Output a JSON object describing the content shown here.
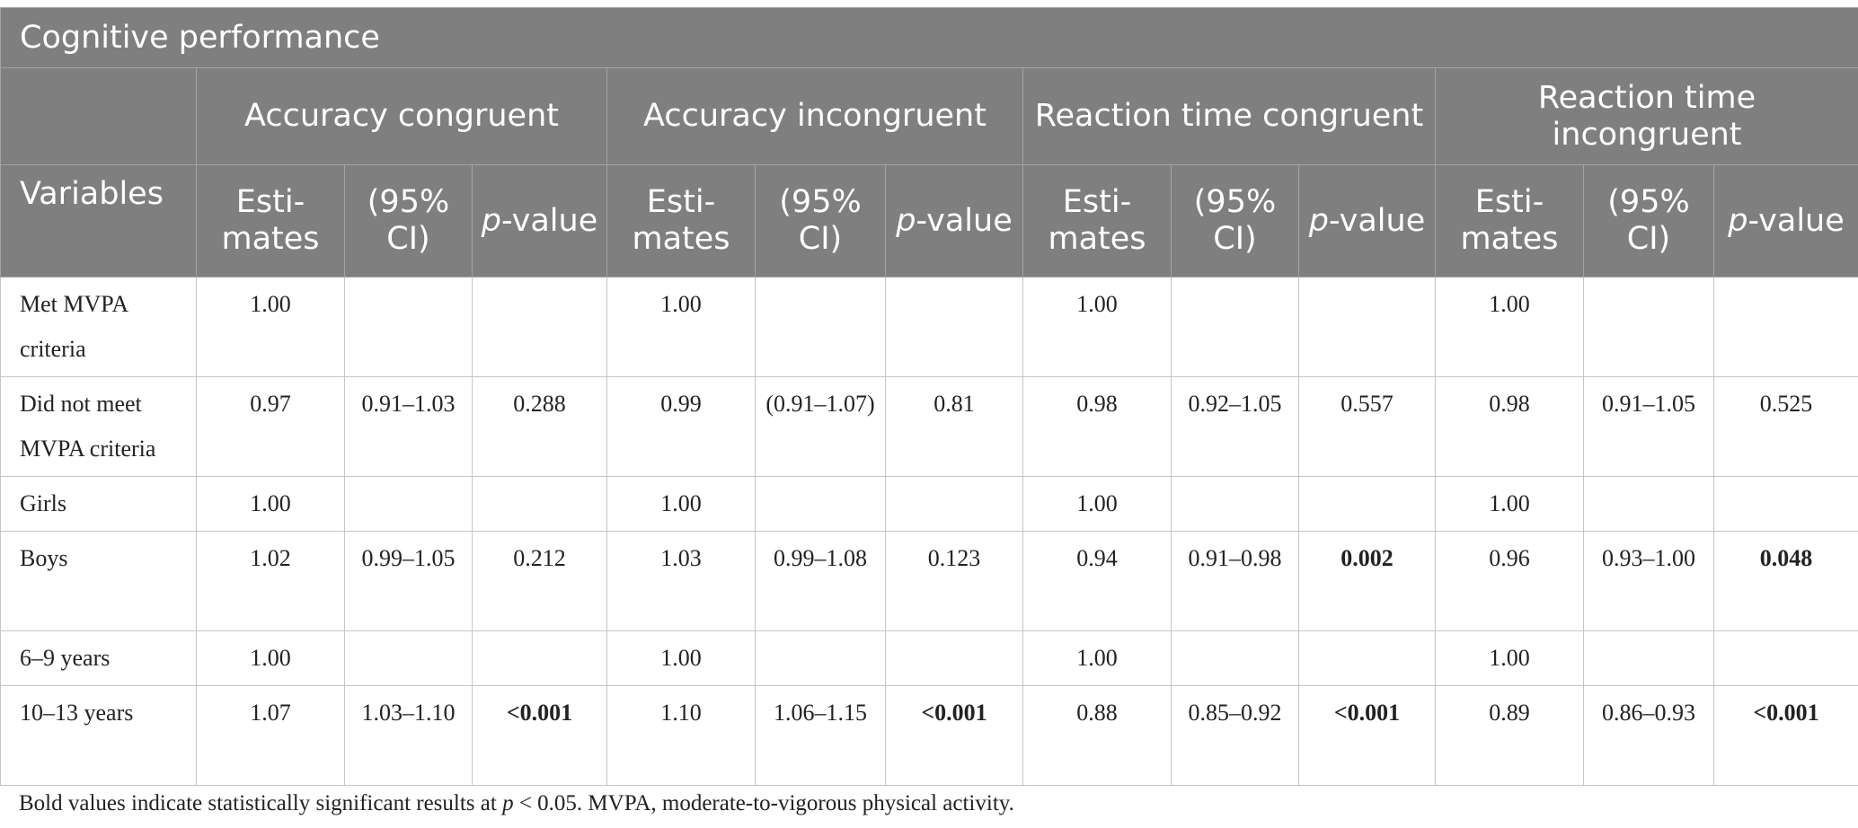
{
  "table": {
    "title": "Cognitive performance",
    "groups": [
      "Accuracy congruent",
      "Accuracy incongruent",
      "Reaction time congruent",
      "Reaction time incongruent"
    ],
    "var_header": "Variables",
    "sub_headers": {
      "estimates": "Esti-mates",
      "ci": "(95% CI)",
      "p_italic": "p",
      "p_rest": "-value"
    },
    "rows": [
      {
        "label": "Met MVPA criteria",
        "cells": [
          "1.00",
          "",
          "",
          "1.00",
          "",
          "",
          "1.00",
          "",
          "",
          "1.00",
          "",
          ""
        ]
      },
      {
        "label": "Did not meet MVPA criteria",
        "cells": [
          "0.97",
          "0.91–1.03",
          "0.288",
          "0.99",
          "(0.91–1.07)",
          "0.81",
          "0.98",
          "0.92–1.05",
          "0.557",
          "0.98",
          "0.91–1.05",
          "0.525"
        ]
      },
      {
        "label": "Girls",
        "cells": [
          "1.00",
          "",
          "",
          "1.00",
          "",
          "",
          "1.00",
          "",
          "",
          "1.00",
          "",
          ""
        ]
      },
      {
        "label": "Boys",
        "cells": [
          "1.02",
          "0.99–1.05",
          "0.212",
          "1.03",
          "0.99–1.08",
          "0.123",
          "0.94",
          "0.91–0.98",
          "0.002",
          "0.96",
          "0.93–1.00",
          "0.048"
        ]
      },
      {
        "label": "6–9 years",
        "cells": [
          "1.00",
          "",
          "",
          "1.00",
          "",
          "",
          "1.00",
          "",
          "",
          "1.00",
          "",
          ""
        ]
      },
      {
        "label": "10–13 years",
        "cells": [
          "1.07",
          "1.03–1.10",
          "<0.001",
          "1.10",
          "1.06–1.15",
          "<0.001",
          "0.88",
          "0.85–0.92",
          "<0.001",
          "0.89",
          "0.86–0.93",
          "<0.001"
        ]
      }
    ],
    "significant": [
      "0.002",
      "0.048",
      "<0.001"
    ]
  },
  "footnote": {
    "part1": "Bold values indicate statistically significant results at ",
    "p": "p",
    "part2": " < 0.05. MVPA, moderate-to-vigorous physical activity."
  }
}
